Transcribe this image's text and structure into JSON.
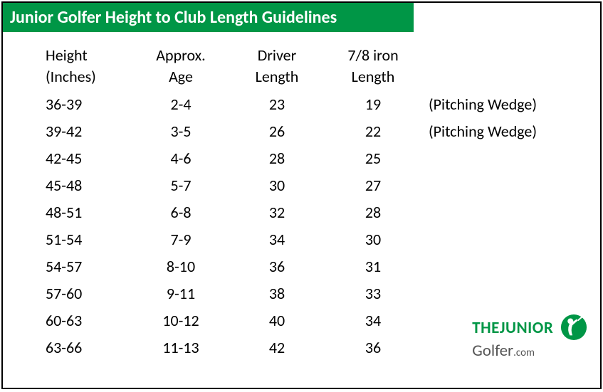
{
  "title": "Junior Golfer Height to Club Length Guidelines",
  "title_bg": "#009646",
  "title_color": "#ffffff",
  "border_color": "#000000",
  "text_color": "#000000",
  "columns": {
    "height": {
      "line1": "Height",
      "line2": "(Inches)"
    },
    "age": {
      "line1": "Approx.",
      "line2": "Age"
    },
    "driver": {
      "line1": "Driver",
      "line2": "Length"
    },
    "iron": {
      "line1": "7/8 iron",
      "line2": "Length"
    },
    "note": {
      "line1": "",
      "line2": ""
    }
  },
  "rows": [
    {
      "height": "36-39",
      "age": "2-4",
      "driver": "23",
      "iron": "19",
      "note": "(Pitching Wedge)"
    },
    {
      "height": "39-42",
      "age": "3-5",
      "driver": "26",
      "iron": "22",
      "note": "(Pitching Wedge)"
    },
    {
      "height": "42-45",
      "age": "4-6",
      "driver": "28",
      "iron": "25",
      "note": ""
    },
    {
      "height": "45-48",
      "age": "5-7",
      "driver": "30",
      "iron": "27",
      "note": ""
    },
    {
      "height": "48-51",
      "age": "6-8",
      "driver": "32",
      "iron": "28",
      "note": ""
    },
    {
      "height": "51-54",
      "age": "7-9",
      "driver": "34",
      "iron": "30",
      "note": ""
    },
    {
      "height": "54-57",
      "age": "8-10",
      "driver": "36",
      "iron": "31",
      "note": ""
    },
    {
      "height": "57-60",
      "age": "9-11",
      "driver": "38",
      "iron": "33",
      "note": ""
    },
    {
      "height": "60-63",
      "age": "10-12",
      "driver": "40",
      "iron": "34",
      "note": ""
    },
    {
      "height": "63-66",
      "age": "11-13",
      "driver": "42",
      "iron": "36",
      "note": ""
    }
  ],
  "logo": {
    "the": "THE",
    "junior": "JUNIOR",
    "golfer": "Golfer",
    "dotcom": ".com",
    "brand_color": "#009646",
    "sub_color": "#555555"
  }
}
